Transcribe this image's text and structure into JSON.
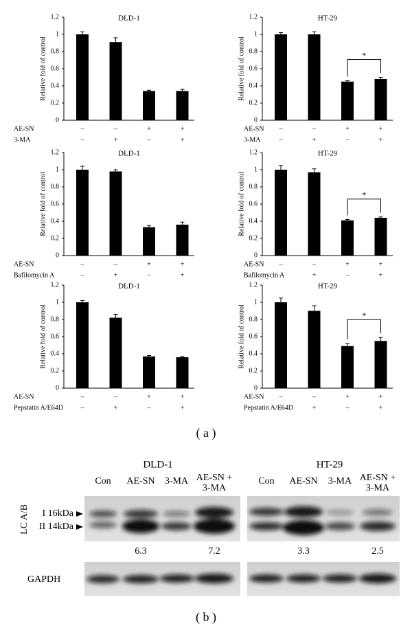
{
  "chart_data": [
    {
      "type": "bar",
      "title": "DLD-1",
      "ylabel": "Relative fold of control",
      "ylim": [
        0,
        1.2
      ],
      "yticks": [
        0,
        0.2,
        0.4,
        0.6,
        0.8,
        1,
        1.2
      ],
      "color": "#000000",
      "values": [
        1.0,
        0.91,
        0.34,
        0.34
      ],
      "errors": [
        0.03,
        0.05,
        0.01,
        0.02
      ],
      "conditions": [
        {
          "label": "AE-SN",
          "signs": [
            "–",
            "–",
            "+",
            "+"
          ]
        },
        {
          "label": "3-MA",
          "signs": [
            "–",
            "+",
            "–",
            "+"
          ]
        }
      ]
    },
    {
      "type": "bar",
      "title": "HT-29",
      "ylabel": "Relative fold of control",
      "ylim": [
        0,
        1.2
      ],
      "yticks": [
        0,
        0.2,
        0.4,
        0.6,
        0.8,
        1,
        1.2
      ],
      "color": "#000000",
      "values": [
        1.0,
        1.0,
        0.45,
        0.48
      ],
      "errors": [
        0.02,
        0.03,
        0.01,
        0.02
      ],
      "annotation": "*",
      "conditions": [
        {
          "label": "AE-SN",
          "signs": [
            "–",
            "–",
            "+",
            "+"
          ]
        },
        {
          "label": "3-MA",
          "signs": [
            "–",
            "+",
            "–",
            "+"
          ]
        }
      ]
    },
    {
      "type": "bar",
      "title": "DLD-1",
      "ylabel": "Relative fold of control",
      "ylim": [
        0,
        1.2
      ],
      "yticks": [
        0,
        0.2,
        0.4,
        0.6,
        0.8,
        1,
        1.2
      ],
      "color": "#000000",
      "values": [
        1.0,
        0.98,
        0.33,
        0.36
      ],
      "errors": [
        0.04,
        0.02,
        0.02,
        0.03
      ],
      "conditions": [
        {
          "label": "AE-SN",
          "signs": [
            "–",
            "–",
            "+",
            "+"
          ]
        },
        {
          "label": "Bafilomycin A",
          "signs": [
            "–",
            "+",
            "–",
            "+"
          ]
        }
      ]
    },
    {
      "type": "bar",
      "title": "HT-29",
      "ylabel": "Relative fold of control",
      "ylim": [
        0,
        1.2
      ],
      "yticks": [
        0,
        0.2,
        0.4,
        0.6,
        0.8,
        1,
        1.2
      ],
      "color": "#000000",
      "values": [
        1.0,
        0.97,
        0.41,
        0.44
      ],
      "errors": [
        0.05,
        0.04,
        0.01,
        0.01
      ],
      "annotation": "*",
      "conditions": [
        {
          "label": "AE-SN",
          "signs": [
            "–",
            "–",
            "+",
            "+"
          ]
        },
        {
          "label": "Bafilomycin A",
          "signs": [
            "–",
            "+",
            "–",
            "+"
          ]
        }
      ]
    },
    {
      "type": "bar",
      "title": "DLD-1",
      "ylabel": "Relative fold of control",
      "ylim": [
        0,
        1.2
      ],
      "yticks": [
        0,
        0.2,
        0.4,
        0.6,
        0.8,
        1,
        1.2
      ],
      "color": "#000000",
      "values": [
        1.0,
        0.82,
        0.37,
        0.36
      ],
      "errors": [
        0.02,
        0.04,
        0.01,
        0.01
      ],
      "conditions": [
        {
          "label": "AE-SN",
          "signs": [
            "–",
            "–",
            "+",
            "+"
          ]
        },
        {
          "label": "Pepstatin A/E64D",
          "signs": [
            "–",
            "+",
            "–",
            "+"
          ]
        }
      ]
    },
    {
      "type": "bar",
      "title": "HT-29",
      "ylabel": "Relative fold of control",
      "ylim": [
        0,
        1.2
      ],
      "yticks": [
        0,
        0.2,
        0.4,
        0.6,
        0.8,
        1,
        1.2
      ],
      "color": "#000000",
      "values": [
        1.0,
        0.9,
        0.49,
        0.55
      ],
      "errors": [
        0.05,
        0.06,
        0.03,
        0.04
      ],
      "annotation": "*",
      "conditions": [
        {
          "label": "AE-SN",
          "signs": [
            "–",
            "–",
            "+",
            "+"
          ]
        },
        {
          "label": "Pepstatin A/E64D",
          "signs": [
            "–",
            "+",
            "–",
            "+"
          ]
        }
      ]
    }
  ],
  "panel_labels": [
    "( a )",
    "( b )"
  ],
  "blot": {
    "ylabel": "LC A/B",
    "bands": [
      "I 16kDa",
      "II 14kDa"
    ],
    "loading": "GAPDH",
    "panels": [
      {
        "title": "DLD-1",
        "lanes": [
          "Con",
          "AE-SN",
          "3-MA",
          "AE-SN + 3-MA"
        ],
        "ratios": [
          null,
          6.3,
          null,
          7.2
        ]
      },
      {
        "title": "HT-29",
        "lanes": [
          "Con",
          "AE-SN",
          "3-MA",
          "AE-SN + 3-MA"
        ],
        "ratios": [
          null,
          3.3,
          null,
          2.5
        ]
      }
    ]
  }
}
